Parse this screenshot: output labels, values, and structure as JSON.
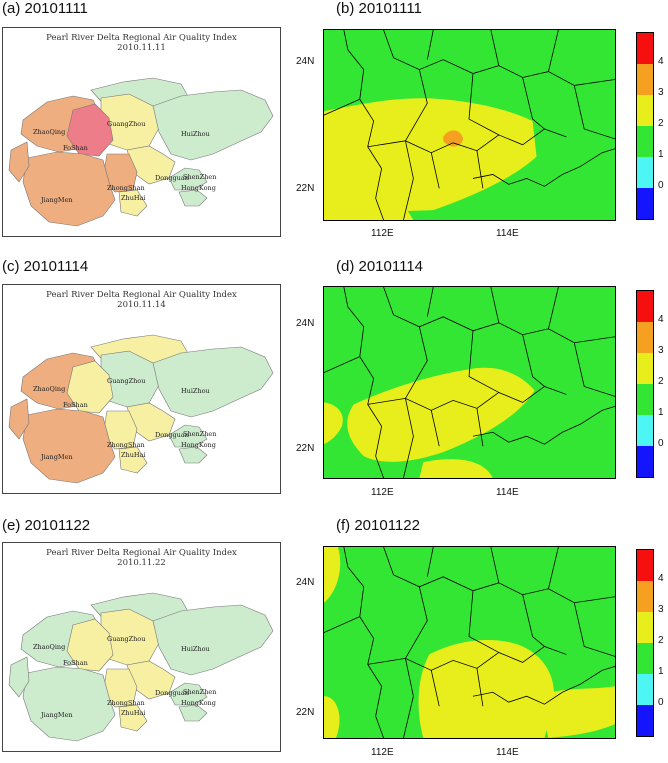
{
  "colors": {
    "lv0": "#1414ff",
    "lv1": "#4df5f5",
    "lv2": "#33e633",
    "lv3": "#e8ee1c",
    "lv4": "#f5a020",
    "lv5": "#f50f0f",
    "map_green": "#cdebcd",
    "map_yellow": "#f7f0a2",
    "map_orange": "#efae80",
    "map_red": "#ee7d8a"
  },
  "map_title": "Pearl River Delta Regional Air Quality Index",
  "cities": {
    "zhaoqing": "ZhaoQing",
    "guangzhou": "GuangZhou",
    "huizhou": "HuiZhou",
    "foshan": "FoShan",
    "dongguan": "Dongguan",
    "shenzhen": "ShenZhen",
    "hongkong": "HongKong",
    "zhongshan": "ZhongShan",
    "jiangmen": "JiangMen",
    "zhuhai": "ZhuHai"
  },
  "axis": {
    "y_ticks": [
      "24N",
      "22N"
    ],
    "x_ticks": [
      "112E",
      "114E"
    ]
  },
  "colorbar": {
    "labels": [
      "4",
      "3",
      "2",
      "1",
      "0"
    ]
  },
  "panels": [
    {
      "left_label": "(a) 20101111",
      "right_label": "(b) 20101111",
      "date": "2010.11.11",
      "city_colors": {
        "zhaoqing": "orange",
        "guangzhou": "yellow",
        "huizhou": "green",
        "foshan": "red",
        "dongguan": "yellow",
        "shenzhen": "green",
        "hongkong": "green",
        "zhongshan": "orange",
        "jiangmen": "orange",
        "zhuhai": "yellow",
        "north": "green",
        "west": "orange"
      }
    },
    {
      "left_label": "(c) 20101114",
      "right_label": "(d) 20101114",
      "date": "2010.11.14",
      "city_colors": {
        "zhaoqing": "orange",
        "guangzhou": "green",
        "huizhou": "green",
        "foshan": "yellow",
        "dongguan": "yellow",
        "shenzhen": "green",
        "hongkong": "green",
        "zhongshan": "yellow",
        "jiangmen": "orange",
        "zhuhai": "yellow",
        "north": "yellow",
        "west": "orange"
      }
    },
    {
      "left_label": "(e) 20101122",
      "right_label": "(f) 20101122",
      "date": "2010.11.22",
      "city_colors": {
        "zhaoqing": "green",
        "guangzhou": "yellow",
        "huizhou": "green",
        "foshan": "yellow",
        "dongguan": "yellow",
        "shenzhen": "green",
        "hongkong": "green",
        "zhongshan": "yellow",
        "jiangmen": "green",
        "zhuhai": "yellow",
        "north": "green",
        "west": "green"
      }
    }
  ]
}
